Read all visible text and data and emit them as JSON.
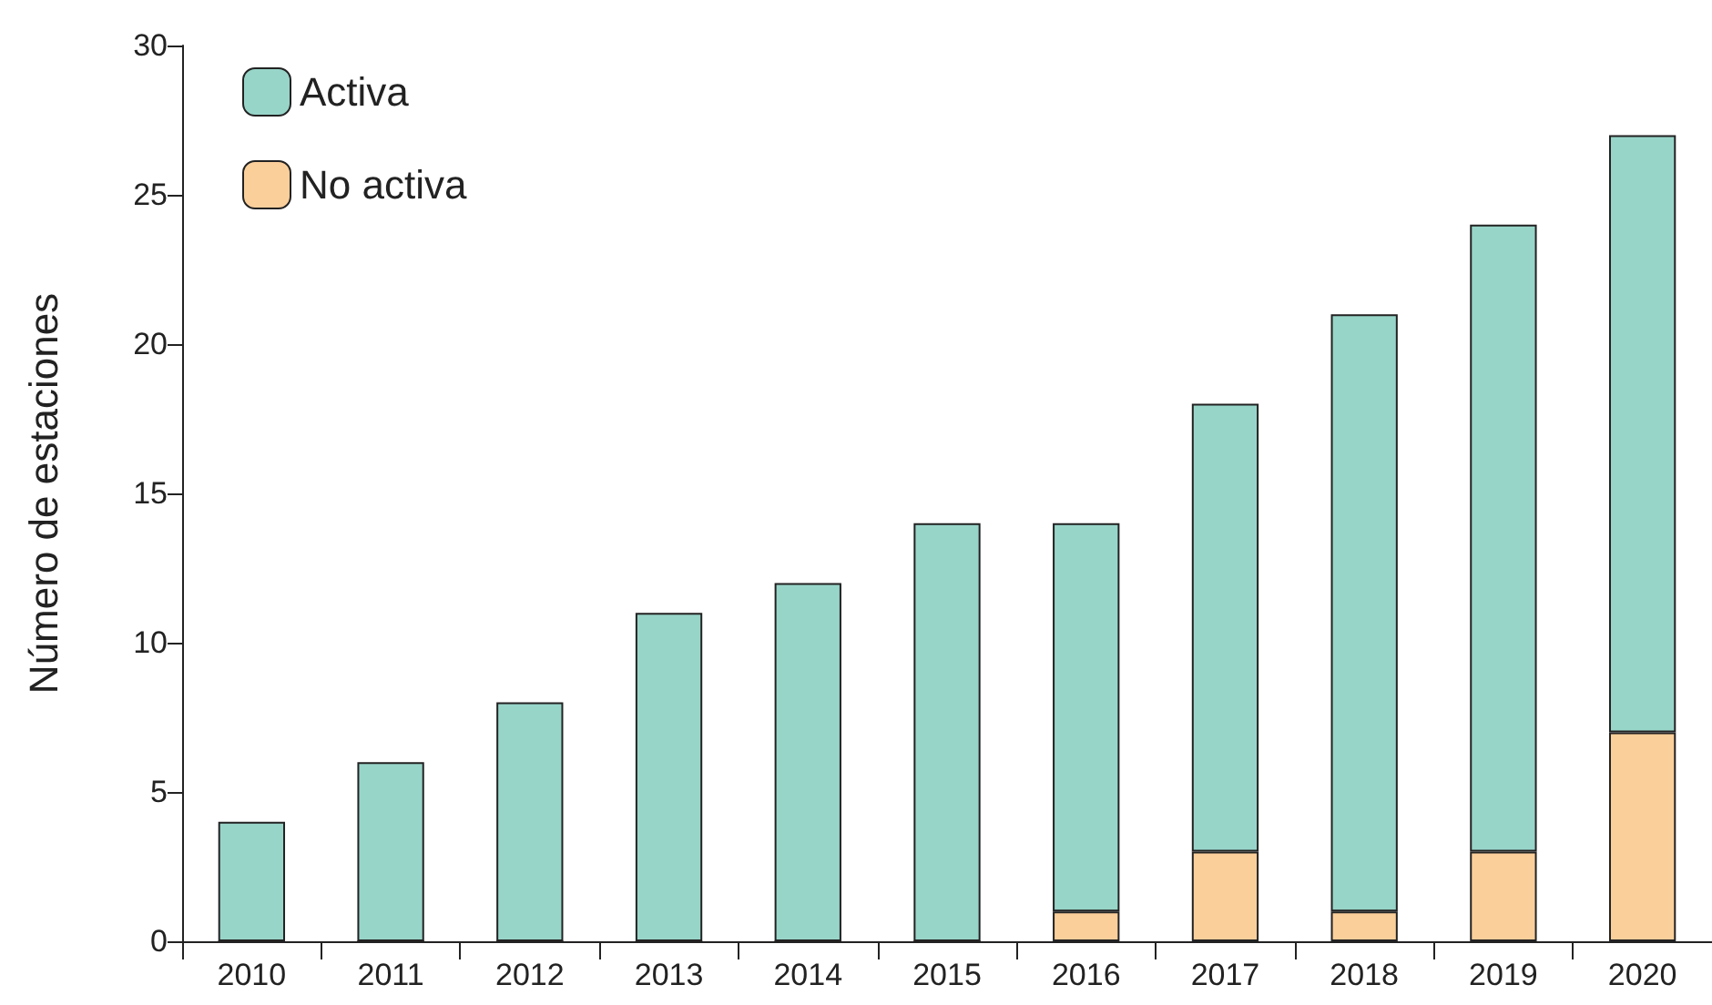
{
  "chart_data": {
    "type": "bar",
    "stacked": true,
    "ylabel": "Número de estaciones",
    "categories": [
      "2010",
      "2011",
      "2012",
      "2013",
      "2014",
      "2015",
      "2016",
      "2017",
      "2018",
      "2019",
      "2020"
    ],
    "series": [
      {
        "name": "No activa",
        "color": "#fbcf9a",
        "values": [
          0,
          0,
          0,
          0,
          0,
          0,
          1,
          3,
          1,
          3,
          7
        ]
      },
      {
        "name": "Activa",
        "color": "#98d5c9",
        "values": [
          4,
          6,
          8,
          11,
          12,
          14,
          13,
          15,
          20,
          21,
          20
        ]
      }
    ],
    "ylim": [
      0,
      30
    ],
    "yticks": [
      0,
      5,
      10,
      15,
      20,
      25,
      30
    ],
    "grid": false,
    "legend": "top left"
  }
}
